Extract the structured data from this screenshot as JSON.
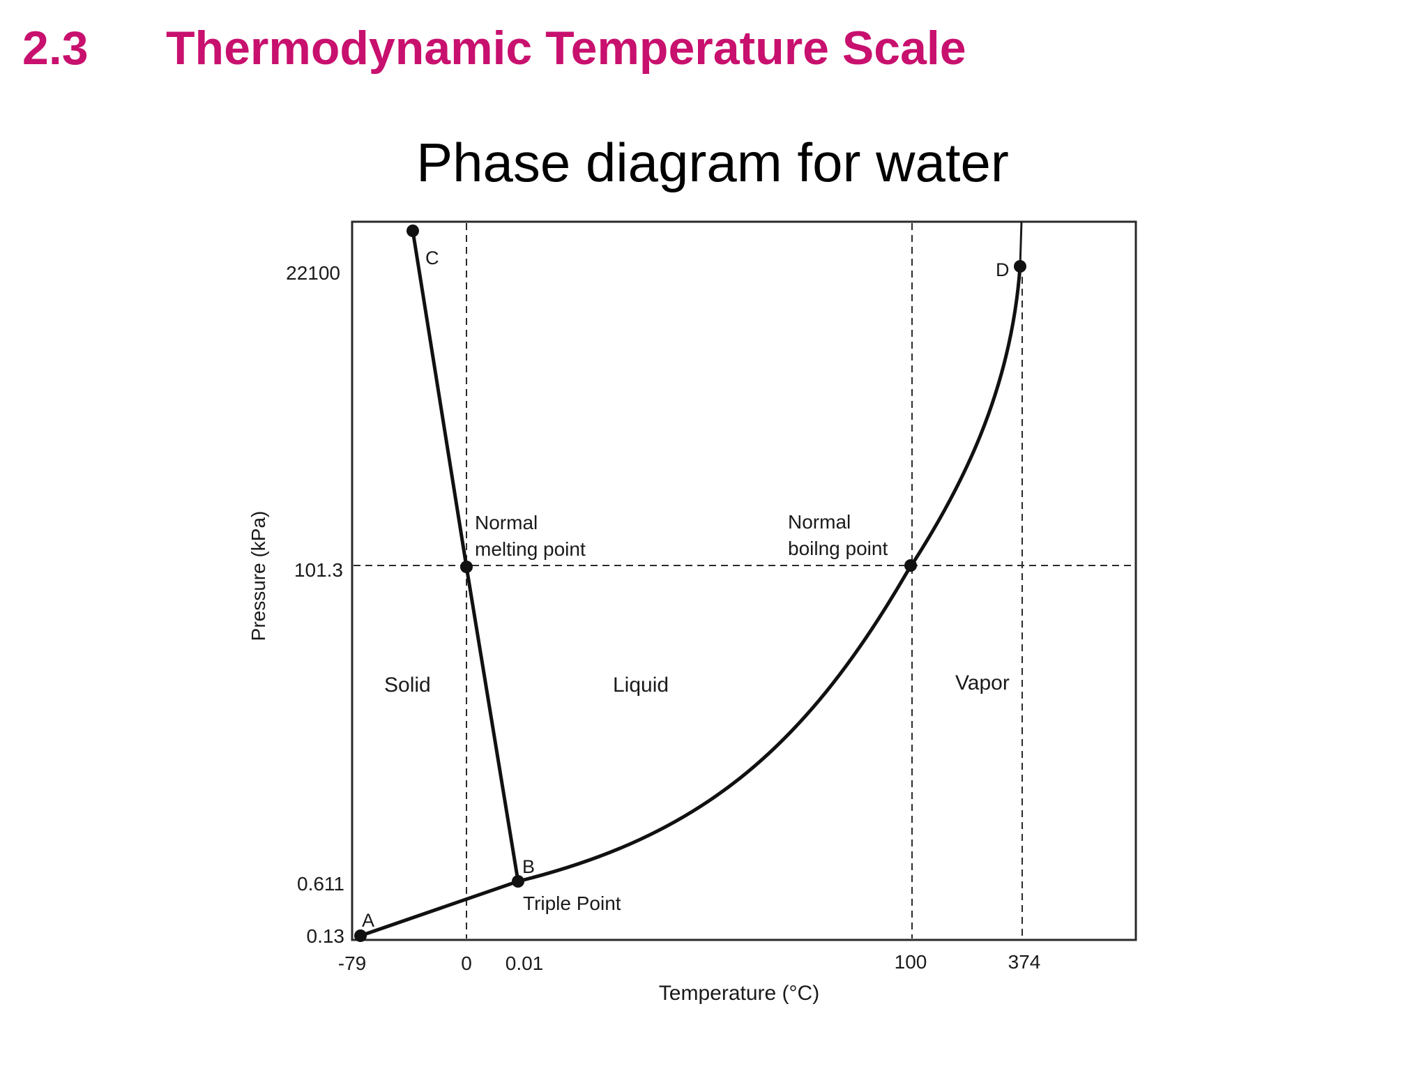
{
  "header": {
    "section_number": "2.3",
    "section_title": "Thermodynamic Temperature Scale",
    "color": "#c8106e"
  },
  "diagram": {
    "title": "Phase diagram for water",
    "x_axis_label": "Temperature (°C)",
    "y_axis_label": "Pressure (kPa)",
    "x_ticks": [
      "-79",
      "0",
      "0.01",
      "100",
      "374"
    ],
    "y_ticks": [
      "22100",
      "101.3",
      "0.611",
      "0.13"
    ],
    "regions": {
      "solid": "Solid",
      "liquid": "Liquid",
      "vapor": "Vapor"
    },
    "points": {
      "a": "A",
      "b": "B",
      "c": "C",
      "d": "D"
    },
    "annotations": {
      "melting_line1": "Normal",
      "melting_line2": "melting point",
      "boiling_line1": "Normal",
      "boiling_line2": "boilng point",
      "triple": "Triple Point"
    }
  }
}
